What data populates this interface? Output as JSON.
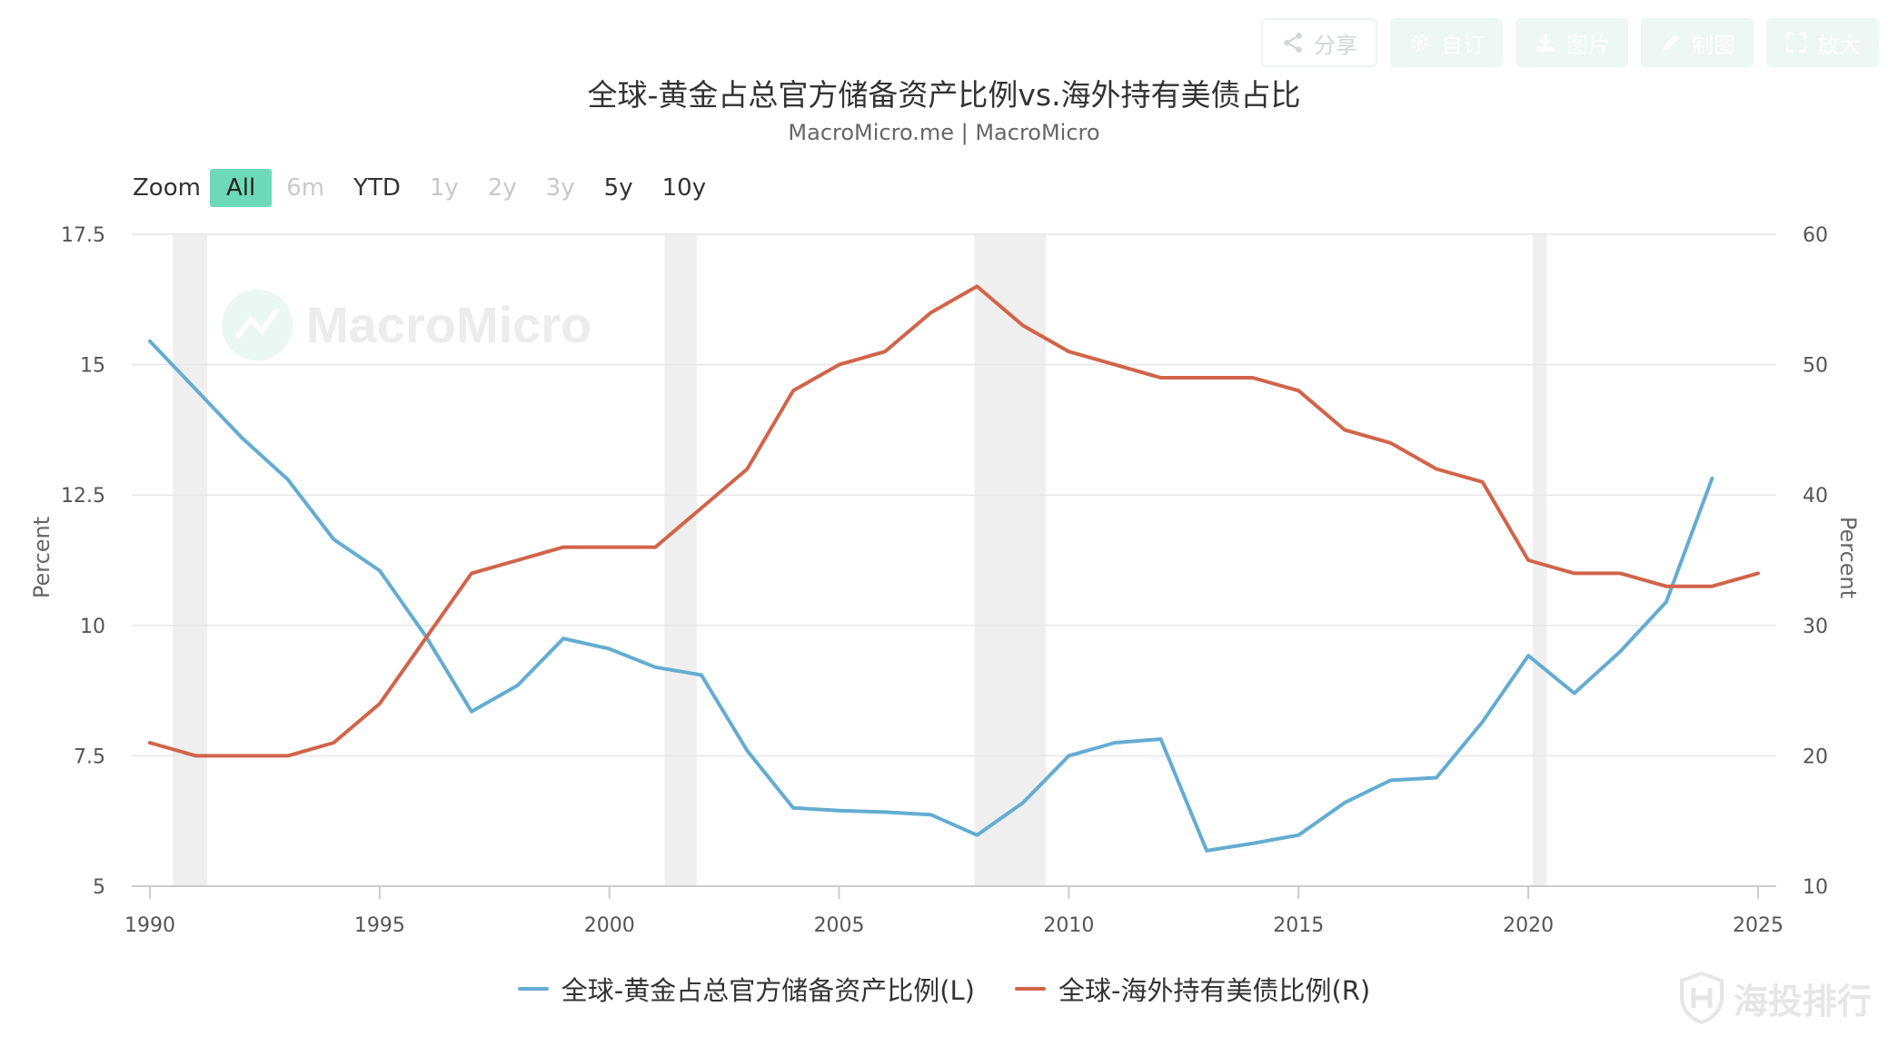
{
  "toolbar": {
    "share": "分享",
    "customize": "自订",
    "image": "图片",
    "draw": "制图",
    "enlarge": "放大"
  },
  "title": "全球-黄金占总官方储备资产比例vs.海外持有美债占比",
  "subtitle": "MacroMicro.me | MacroMicro",
  "zoom": {
    "label": "Zoom",
    "options": [
      "All",
      "6m",
      "YTD",
      "1y",
      "2y",
      "3y",
      "5y",
      "10y"
    ],
    "active": "All",
    "disabled": [
      "6m",
      "1y",
      "2y",
      "3y"
    ]
  },
  "watermark": "MacroMicro",
  "brand": "海投排行",
  "colors": {
    "gold_series": "#64acd1",
    "treasury_series": "#d1644a",
    "recession_band": "#efefef",
    "grid": "#e6e6e6"
  },
  "chart_data": {
    "type": "line",
    "x_range": [
      1990,
      2025
    ],
    "x_ticks": [
      1990,
      1995,
      2000,
      2005,
      2010,
      2015,
      2020,
      2025
    ],
    "left_axis": {
      "label": "Percent",
      "range": [
        5,
        17.5
      ],
      "ticks": [
        5,
        7.5,
        10,
        12.5,
        15,
        17.5
      ],
      "tick_labels": [
        "5",
        "7.5",
        "10",
        "12.5",
        "15",
        "17.5"
      ]
    },
    "right_axis": {
      "label": "Percent",
      "range": [
        10,
        60
      ],
      "ticks": [
        10,
        20,
        30,
        40,
        50,
        60
      ],
      "tick_labels": [
        "10",
        "20",
        "30",
        "40",
        "50",
        "60"
      ]
    },
    "grid": true,
    "legend_position": "bottom-center",
    "shaded_periods": [
      [
        1990.5,
        1991.25
      ],
      [
        2001.2,
        2001.9
      ],
      [
        2007.95,
        2009.5
      ],
      [
        2020.1,
        2020.4
      ]
    ],
    "series": [
      {
        "name": "全球-黄金占总官方储备资产比例(L)",
        "axis": "left",
        "x": [
          1990,
          1992,
          1993,
          1994,
          1995,
          1996,
          1997,
          1998,
          1999,
          2000,
          2001,
          2002,
          2003,
          2004,
          2005,
          2006,
          2007,
          2008,
          2009,
          2010,
          2011,
          2012,
          2013,
          2014,
          2015,
          2016,
          2017,
          2018,
          2019,
          2020,
          2021,
          2022,
          2023,
          2024
        ],
        "values": [
          15.45,
          13.6,
          12.8,
          11.65,
          11.05,
          9.8,
          8.35,
          8.85,
          9.75,
          9.55,
          9.2,
          9.05,
          7.6,
          6.5,
          6.45,
          6.42,
          6.37,
          5.98,
          6.6,
          7.5,
          7.75,
          7.82,
          5.68,
          5.82,
          5.98,
          6.6,
          7.03,
          7.08,
          8.15,
          9.42,
          8.7,
          9.5,
          10.45,
          12.82
        ]
      },
      {
        "name": "全球-海外持有美债比例(R)",
        "axis": "right",
        "x": [
          1990,
          1991,
          1992,
          1993,
          1994,
          1995,
          1996,
          1997,
          1998,
          1999,
          2000,
          2001,
          2002,
          2003,
          2004,
          2005,
          2006,
          2007,
          2008,
          2009,
          2010,
          2011,
          2012,
          2013,
          2014,
          2015,
          2016,
          2017,
          2018,
          2019,
          2020,
          2021,
          2022,
          2023,
          2024,
          2025
        ],
        "values": [
          21,
          20,
          20,
          20,
          21,
          24,
          29,
          34,
          35,
          36,
          36,
          36,
          39,
          42,
          48,
          50,
          51,
          54,
          56,
          53,
          51,
          50,
          49,
          49,
          49,
          48,
          45,
          44,
          42,
          41,
          35,
          34,
          34,
          33,
          33,
          34
        ]
      }
    ]
  }
}
